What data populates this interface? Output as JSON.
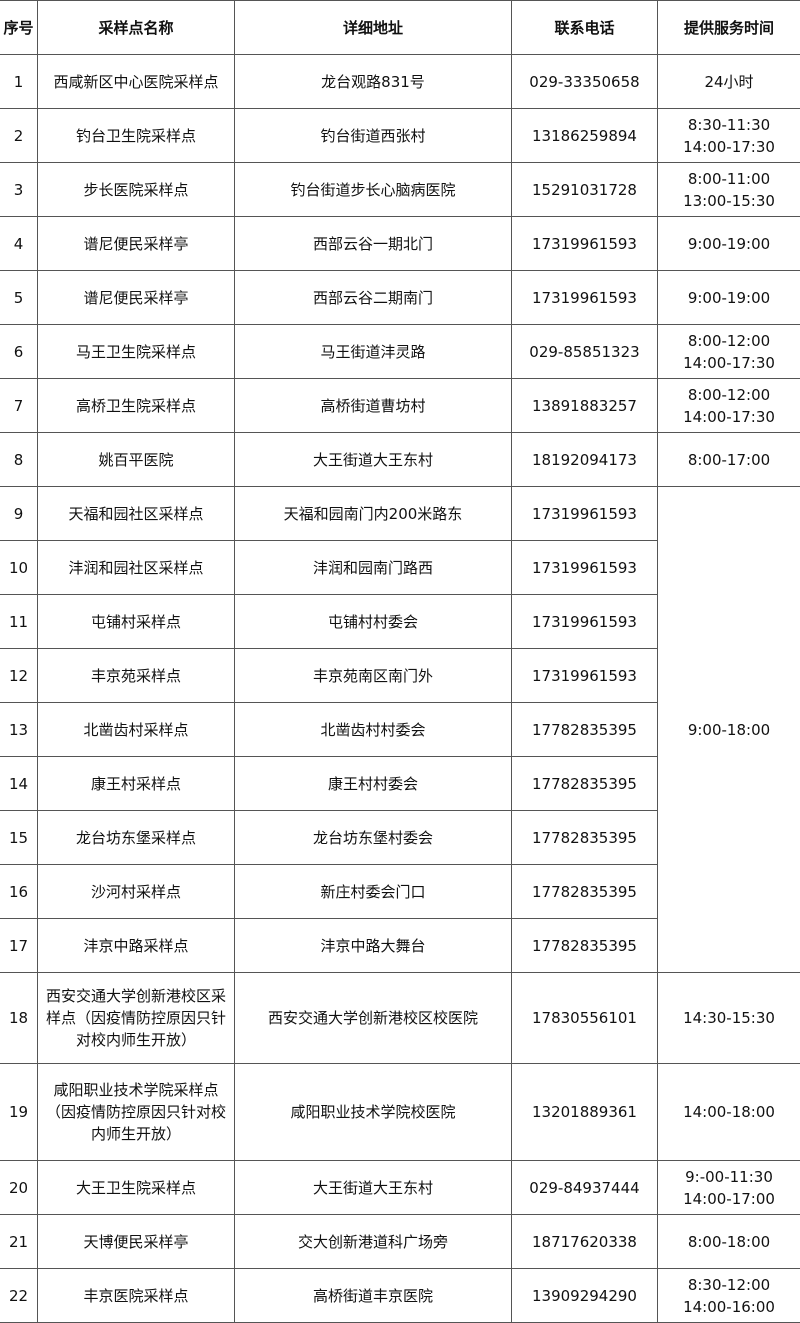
{
  "headers": [
    "序号",
    "采样点名称",
    "详细地址",
    "联系电话",
    "提供服务时间"
  ],
  "rows": [
    {
      "no": "1",
      "name": "西咸新区中心医院采样点",
      "address": "龙台观路831号",
      "phone": "029-33350658",
      "hours": [
        "24小时"
      ]
    },
    {
      "no": "2",
      "name": "钓台卫生院采样点",
      "address": "钓台街道西张村",
      "phone": "13186259894",
      "hours": [
        "8:30-11:30",
        "14:00-17:30"
      ]
    },
    {
      "no": "3",
      "name": "步长医院采样点",
      "address": "钓台街道步长心脑病医院",
      "phone": "15291031728",
      "hours": [
        "8:00-11:00",
        "13:00-15:30"
      ]
    },
    {
      "no": "4",
      "name": "谱尼便民采样亭",
      "address": "西部云谷一期北门",
      "phone": "17319961593",
      "hours": [
        "9:00-19:00"
      ]
    },
    {
      "no": "5",
      "name": "谱尼便民采样亭",
      "address": "西部云谷二期南门",
      "phone": "17319961593",
      "hours": [
        "9:00-19:00"
      ]
    },
    {
      "no": "6",
      "name": "马王卫生院采样点",
      "address": "马王街道沣灵路",
      "phone": "029-85851323",
      "hours": [
        "8:00-12:00",
        "14:00-17:30"
      ]
    },
    {
      "no": "7",
      "name": "高桥卫生院采样点",
      "address": "高桥街道曹坊村",
      "phone": "13891883257",
      "hours": [
        "8:00-12:00",
        "14:00-17:30"
      ]
    },
    {
      "no": "8",
      "name": "姚百平医院",
      "address": "大王街道大王东村",
      "phone": "18192094173",
      "hours": [
        "8:00-17:00"
      ]
    },
    {
      "no": "9",
      "name": "天福和园社区采样点",
      "address": "天福和园南门内200米路东",
      "phone": "17319961593",
      "hours": [
        "9:00-18:00"
      ],
      "span": 9
    },
    {
      "no": "10",
      "name": "沣润和园社区采样点",
      "address": "沣润和园南门路西",
      "phone": "17319961593"
    },
    {
      "no": "11",
      "name": "屯铺村采样点",
      "address": "屯铺村村委会",
      "phone": "17319961593"
    },
    {
      "no": "12",
      "name": "丰京苑采样点",
      "address": "丰京苑南区南门外",
      "phone": "17319961593"
    },
    {
      "no": "13",
      "name": "北凿齿村采样点",
      "address": "北凿齿村村委会",
      "phone": "17782835395"
    },
    {
      "no": "14",
      "name": "康王村采样点",
      "address": "康王村村委会",
      "phone": "17782835395"
    },
    {
      "no": "15",
      "name": "龙台坊东堡采样点",
      "address": "龙台坊东堡村委会",
      "phone": "17782835395"
    },
    {
      "no": "16",
      "name": "沙河村采样点",
      "address": "新庄村委会门口",
      "phone": "17782835395"
    },
    {
      "no": "17",
      "name": "沣京中路采样点",
      "address": "沣京中路大舞台",
      "phone": "17782835395"
    },
    {
      "no": "18",
      "name": "西安交通大学创新港校区采样点（因疫情防控原因只针对校内师生开放）",
      "address": "西安交通大学创新港校区校医院",
      "phone": "17830556101",
      "hours": [
        "14:30-15:30"
      ]
    },
    {
      "no": "19",
      "name": "咸阳职业技术学院采样点（因疫情防控原因只针对校内师生开放）",
      "address": "咸阳职业技术学院校医院",
      "phone": "13201889361",
      "hours": [
        "14:00-18:00"
      ]
    },
    {
      "no": "20",
      "name": "大王卫生院采样点",
      "address": "大王街道大王东村",
      "phone": "029-84937444",
      "hours": [
        "9:-00-11:30",
        "14:00-17:00"
      ]
    },
    {
      "no": "21",
      "name": "天博便民采样亭",
      "address": "交大创新港道科广场旁",
      "phone": "18717620338",
      "hours": [
        "8:00-18:00"
      ]
    },
    {
      "no": "22",
      "name": "丰京医院采样点",
      "address": "高桥街道丰京医院",
      "phone": "13909294290",
      "hours": [
        "8:30-12:00",
        "14:00-16:00"
      ]
    }
  ]
}
